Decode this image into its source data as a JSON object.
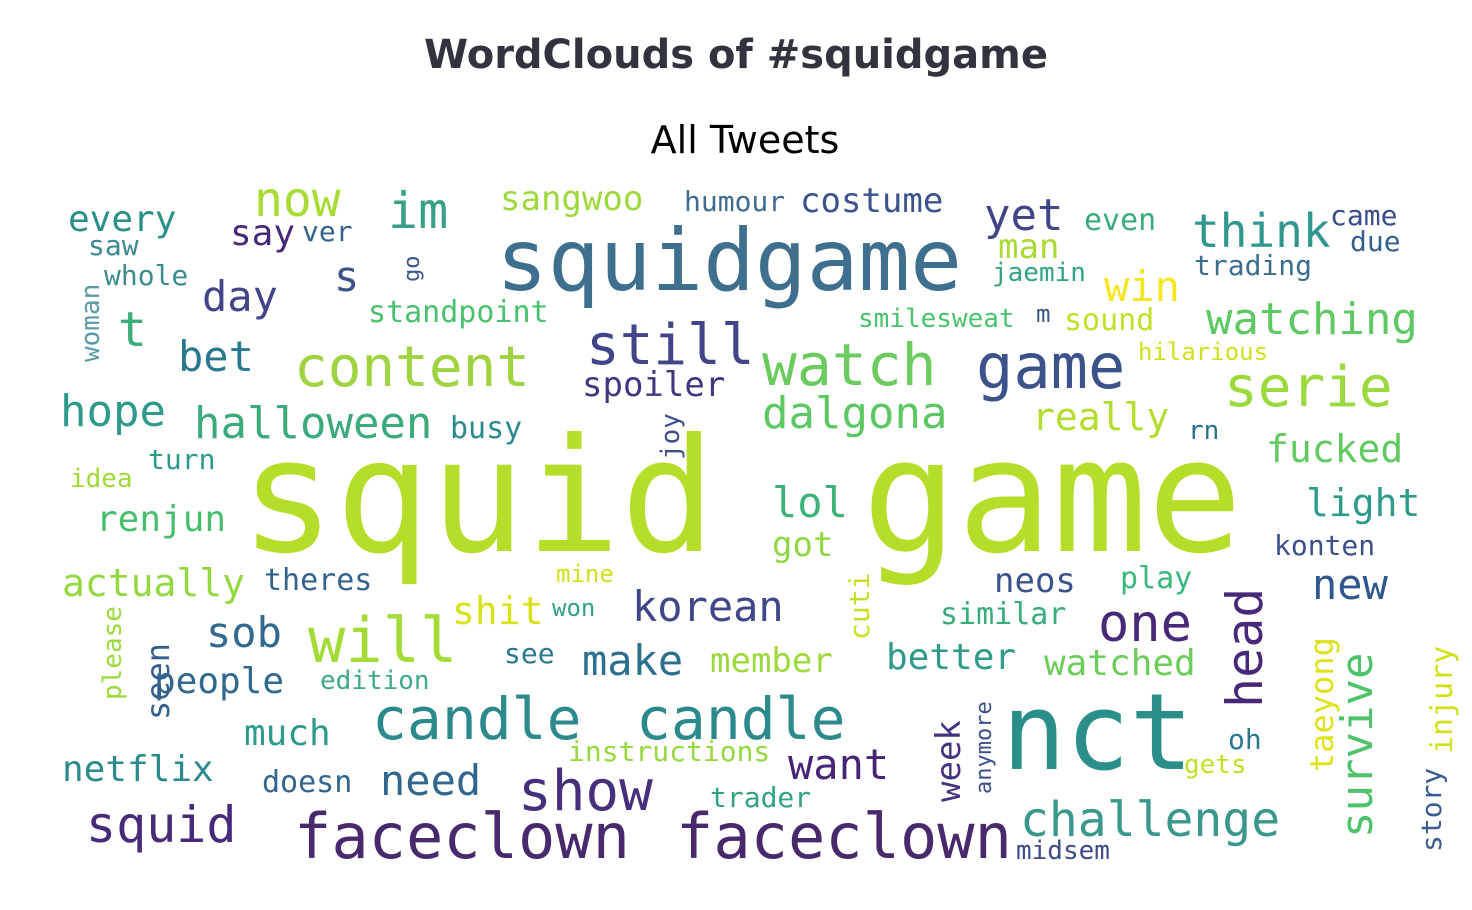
{
  "header": {
    "title": "WordClouds of #squidgame",
    "subtitle": "All Tweets"
  },
  "wordcloud": {
    "words": [
      {
        "text": "squid",
        "color": "#b5de2b"
      },
      {
        "text": "game",
        "color": "#b5de2b"
      },
      {
        "text": "squidgame",
        "color": "#3e6f8e"
      },
      {
        "text": "nct",
        "color": "#2a8f89"
      },
      {
        "text": "game",
        "color": "#3b528b"
      },
      {
        "text": "faceclown",
        "color": "#482a6c"
      },
      {
        "text": "faceclown",
        "color": "#482a6c"
      },
      {
        "text": "candle",
        "color": "#2c8a8c"
      },
      {
        "text": "candle",
        "color": "#2c8a8c"
      },
      {
        "text": "content",
        "color": "#9fd33f"
      },
      {
        "text": "watch",
        "color": "#6bcb5f"
      },
      {
        "text": "still",
        "color": "#414487"
      },
      {
        "text": "will",
        "color": "#a5db36"
      },
      {
        "text": "show",
        "color": "#46307b"
      },
      {
        "text": "squid",
        "color": "#472a7a"
      },
      {
        "text": "one",
        "color": "#482878"
      },
      {
        "text": "serie",
        "color": "#9bd93c"
      },
      {
        "text": "head",
        "color": "#482878"
      },
      {
        "text": "challenge",
        "color": "#39988b"
      },
      {
        "text": "survive",
        "color": "#4ec36b"
      },
      {
        "text": "watching",
        "color": "#5ec962"
      },
      {
        "text": "think",
        "color": "#2f978d"
      },
      {
        "text": "now",
        "color": "#a8db34"
      },
      {
        "text": "im",
        "color": "#38a086"
      },
      {
        "text": "t",
        "color": "#3aad79"
      },
      {
        "text": "s",
        "color": "#3b528b"
      },
      {
        "text": "day",
        "color": "#414487"
      },
      {
        "text": "bet",
        "color": "#2a788e"
      },
      {
        "text": "hope",
        "color": "#2e9a8b"
      },
      {
        "text": "halloween",
        "color": "#3bab7b"
      },
      {
        "text": "dalgona",
        "color": "#5dc863"
      },
      {
        "text": "spoiler",
        "color": "#463480"
      },
      {
        "text": "korean",
        "color": "#3f4788"
      },
      {
        "text": "lol",
        "color": "#3cb278"
      },
      {
        "text": "got",
        "color": "#90d743"
      },
      {
        "text": "make",
        "color": "#2d708e"
      },
      {
        "text": "sob",
        "color": "#31688e"
      },
      {
        "text": "need",
        "color": "#31678e"
      },
      {
        "text": "want",
        "color": "#482475"
      },
      {
        "text": "yet",
        "color": "#414487"
      },
      {
        "text": "costume",
        "color": "#3b528b"
      },
      {
        "text": "sangwoo",
        "color": "#9dd93b"
      },
      {
        "text": "humour",
        "color": "#3f6b8f"
      },
      {
        "text": "every",
        "color": "#2a8f89"
      },
      {
        "text": "say",
        "color": "#482878"
      },
      {
        "text": "ver",
        "color": "#33638d"
      },
      {
        "text": "saw",
        "color": "#3e8a8e"
      },
      {
        "text": "whole",
        "color": "#3b8c8c"
      },
      {
        "text": "woman",
        "color": "#5a9aa4"
      },
      {
        "text": "go",
        "color": "#3b528b"
      },
      {
        "text": "standpoint",
        "color": "#4ac16d"
      },
      {
        "text": "win",
        "color": "#f6e620"
      },
      {
        "text": "man",
        "color": "#a8db34"
      },
      {
        "text": "jaemin",
        "color": "#31a285"
      },
      {
        "text": "even",
        "color": "#3aab7b"
      },
      {
        "text": "came",
        "color": "#3b4c8a"
      },
      {
        "text": "due",
        "color": "#35608d"
      },
      {
        "text": "trading",
        "color": "#3d6d8e"
      },
      {
        "text": "smilesweat",
        "color": "#4ac26b"
      },
      {
        "text": "m",
        "color": "#3c5889"
      },
      {
        "text": "sound",
        "color": "#c2df23"
      },
      {
        "text": "hilarious",
        "color": "#d0e11c"
      },
      {
        "text": "really",
        "color": "#b2dd2d"
      },
      {
        "text": "rn",
        "color": "#2e6f8e"
      },
      {
        "text": "fucked",
        "color": "#60ca60"
      },
      {
        "text": "busy",
        "color": "#2b8b8c"
      },
      {
        "text": "joy",
        "color": "#3c4f8a"
      },
      {
        "text": "turn",
        "color": "#2c9a8a"
      },
      {
        "text": "idea",
        "color": "#9fd938"
      },
      {
        "text": "renjun",
        "color": "#47be6d"
      },
      {
        "text": "actually",
        "color": "#94d841"
      },
      {
        "text": "theres",
        "color": "#33628d"
      },
      {
        "text": "mine",
        "color": "#d0e11c"
      },
      {
        "text": "won",
        "color": "#34a085"
      },
      {
        "text": "shit",
        "color": "#d8e219"
      },
      {
        "text": "cuti",
        "color": "#c9df23"
      },
      {
        "text": "neos",
        "color": "#3b528b"
      },
      {
        "text": "play",
        "color": "#38b97a"
      },
      {
        "text": "light",
        "color": "#2e9a8b"
      },
      {
        "text": "konten",
        "color": "#3d4f8a"
      },
      {
        "text": "new",
        "color": "#31568c"
      },
      {
        "text": "similar",
        "color": "#39ad79"
      },
      {
        "text": "watched",
        "color": "#6ccd5a"
      },
      {
        "text": "taeyong",
        "color": "#dde318"
      },
      {
        "text": "injury",
        "color": "#d0e11c"
      },
      {
        "text": "story",
        "color": "#3b5c8c"
      },
      {
        "text": "oh",
        "color": "#2a788e"
      },
      {
        "text": "gets",
        "color": "#c2df23"
      },
      {
        "text": "better",
        "color": "#2f9b8b"
      },
      {
        "text": "member",
        "color": "#9dd93b"
      },
      {
        "text": "see",
        "color": "#2a788e"
      },
      {
        "text": "edition",
        "color": "#3fa98a"
      },
      {
        "text": "people",
        "color": "#31688e"
      },
      {
        "text": "seen",
        "color": "#355f8d"
      },
      {
        "text": "please",
        "color": "#9bd93c"
      },
      {
        "text": "much",
        "color": "#2e9a8b"
      },
      {
        "text": "netflix",
        "color": "#2c8a8c"
      },
      {
        "text": "doesn",
        "color": "#32648e"
      },
      {
        "text": "instructions",
        "color": "#96d83f"
      },
      {
        "text": "trader",
        "color": "#31a285"
      },
      {
        "text": "week",
        "color": "#46327e"
      },
      {
        "text": "anymore",
        "color": "#3c508b"
      },
      {
        "text": "midsem",
        "color": "#3e4a89"
      }
    ]
  }
}
